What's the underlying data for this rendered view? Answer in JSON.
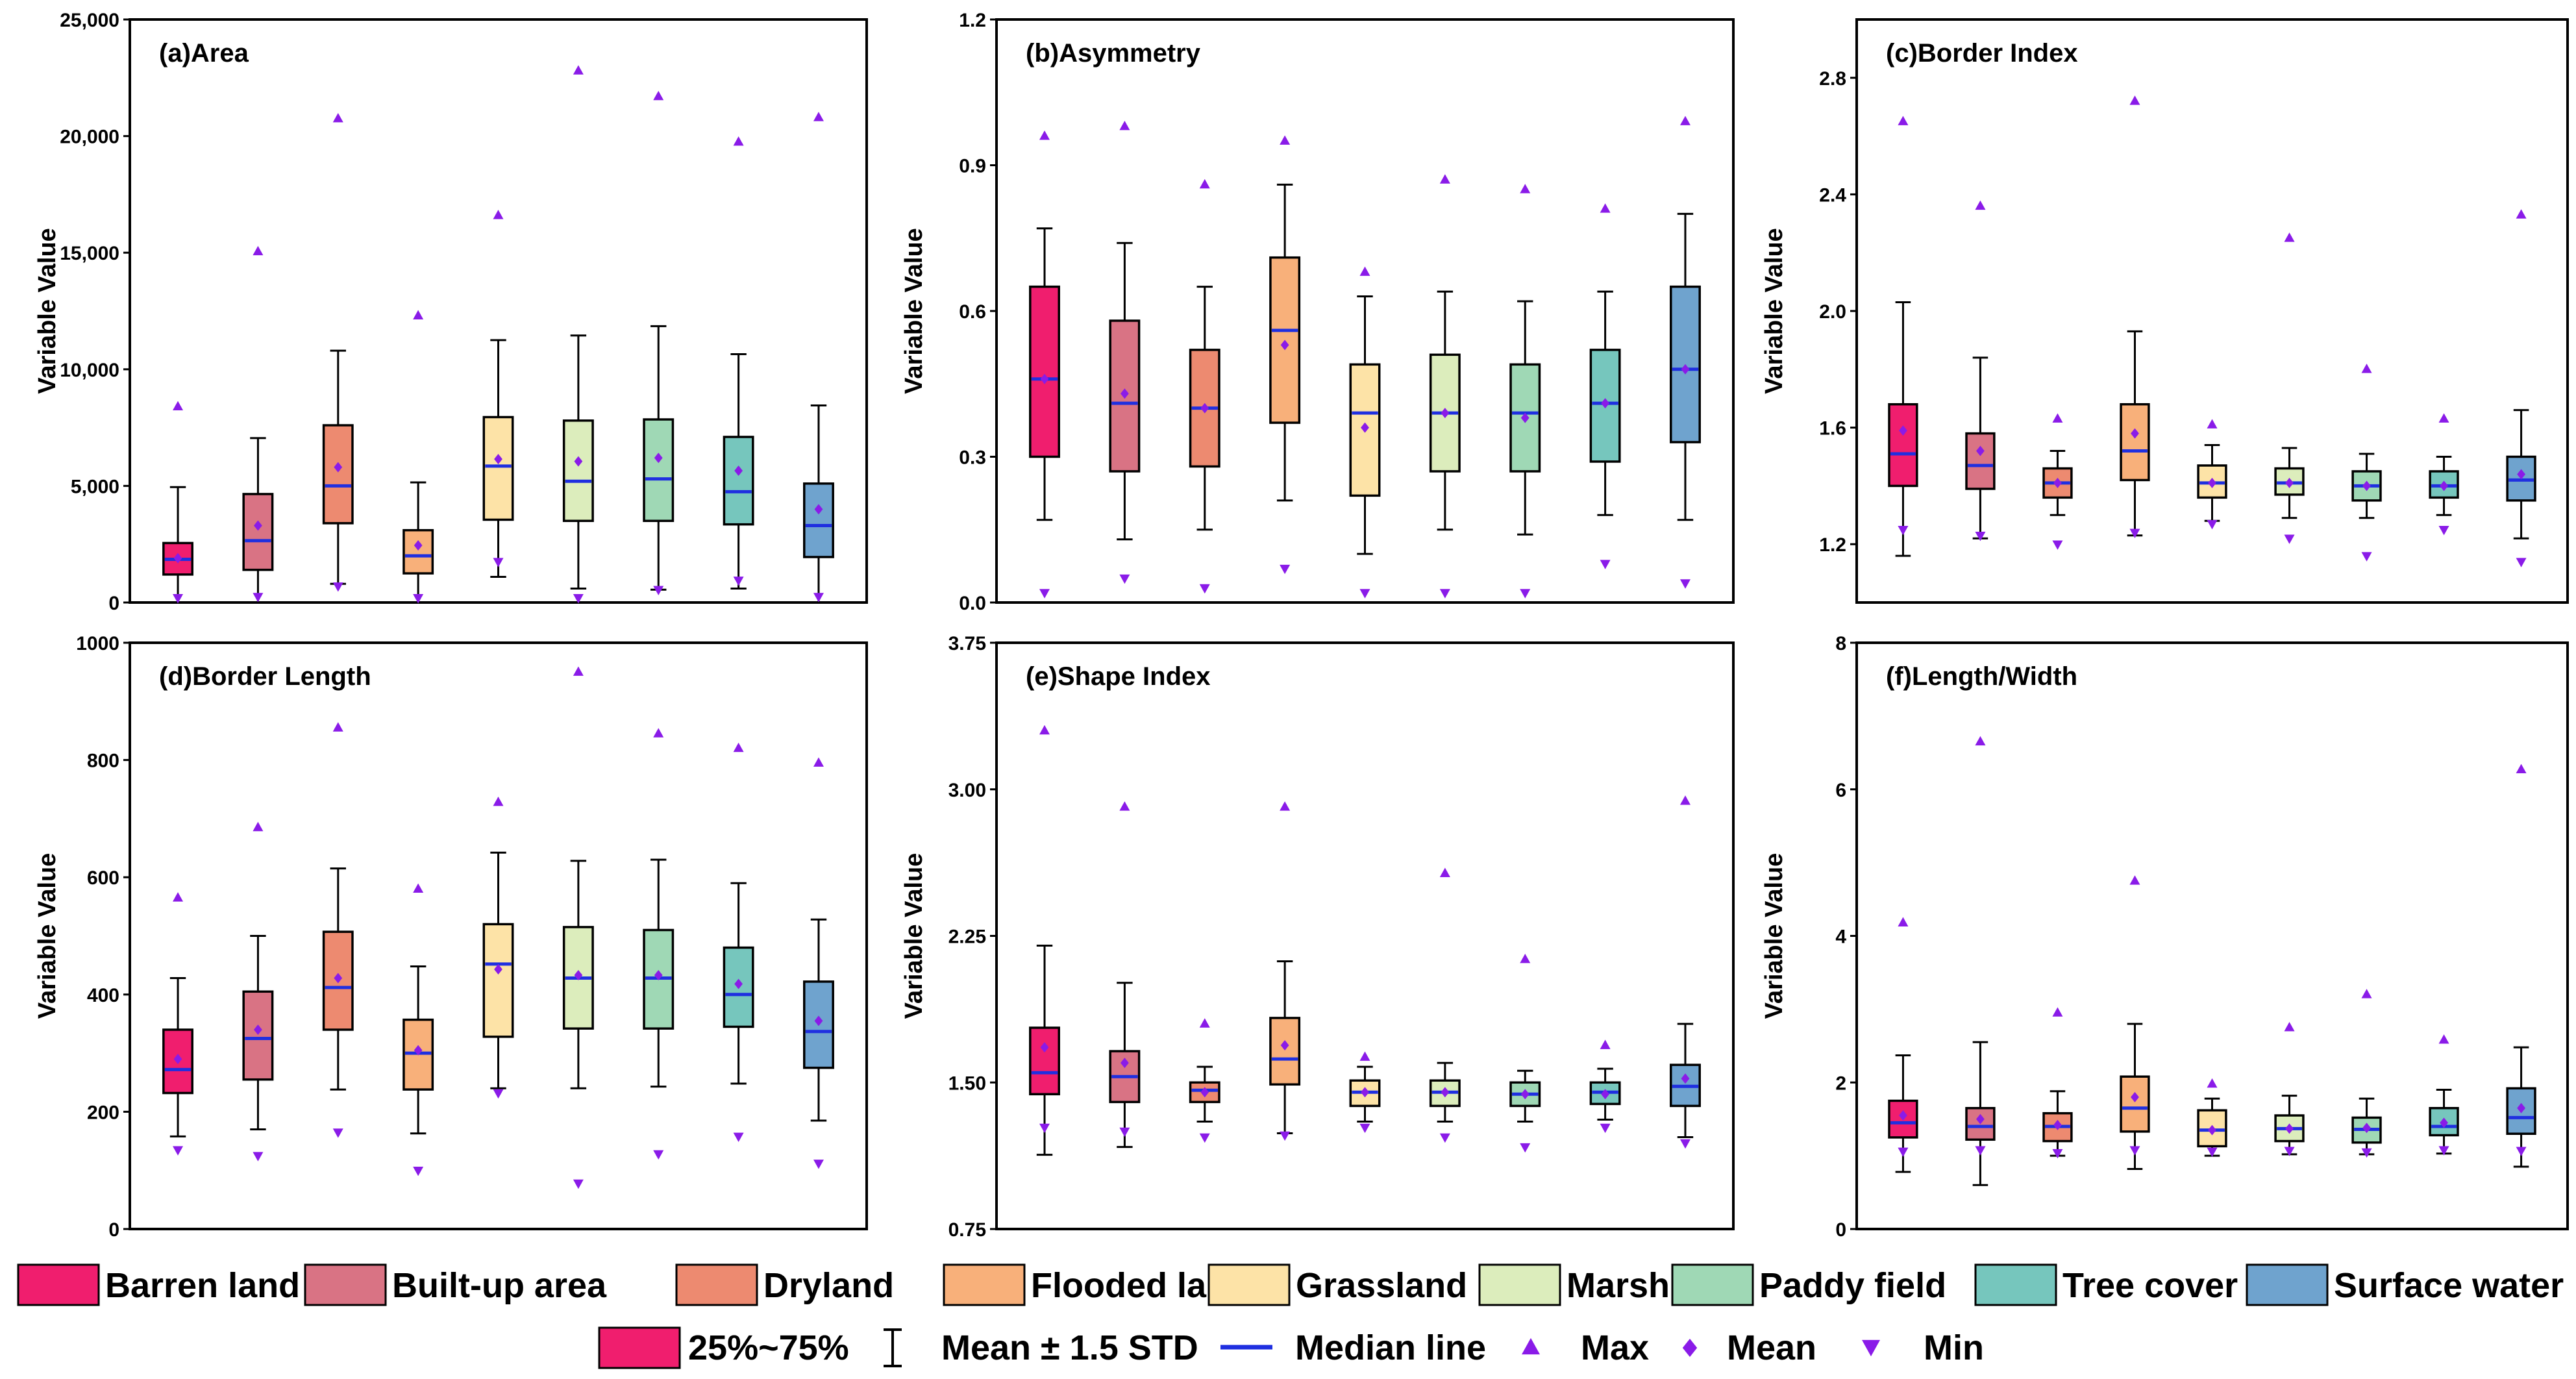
{
  "chart_data": [
    {
      "type": "box",
      "title": "(a)Area",
      "ylabel": "Variable Value",
      "ylim": [
        0,
        25000
      ],
      "yticks": [
        0,
        5000,
        10000,
        15000,
        20000,
        25000
      ],
      "ytick_labels": [
        "0",
        "5,000",
        "10,000",
        "15,000",
        "20,000",
        "25,000"
      ],
      "categories": [
        "Barren land",
        "Built-up area",
        "Dryland",
        "Flooded land",
        "Grassland",
        "Marsh",
        "Paddy field",
        "Tree cover",
        "Surface water"
      ],
      "boxes": [
        {
          "q1": 1200,
          "q3": 2550,
          "median": 1850,
          "mean": 1900,
          "whisker_low": 0,
          "whisker_high": 4950,
          "max": 8400,
          "min": 200
        },
        {
          "q1": 1400,
          "q3": 4650,
          "median": 2650,
          "mean": 3300,
          "whisker_low": 0,
          "whisker_high": 7050,
          "max": 15050,
          "min": 250
        },
        {
          "q1": 3400,
          "q3": 7600,
          "median": 5000,
          "mean": 5800,
          "whisker_low": 800,
          "whisker_high": 10800,
          "max": 20750,
          "min": 700
        },
        {
          "q1": 1250,
          "q3": 3100,
          "median": 2000,
          "mean": 2450,
          "whisker_low": 0,
          "whisker_high": 5150,
          "max": 12300,
          "min": 200
        },
        {
          "q1": 3550,
          "q3": 7950,
          "median": 5850,
          "mean": 6150,
          "whisker_low": 1100,
          "whisker_high": 11250,
          "max": 16600,
          "min": 1750
        },
        {
          "q1": 3500,
          "q3": 7800,
          "median": 5200,
          "mean": 6050,
          "whisker_low": 600,
          "whisker_high": 11450,
          "max": 22800,
          "min": 200
        },
        {
          "q1": 3500,
          "q3": 7850,
          "median": 5300,
          "mean": 6200,
          "whisker_low": 550,
          "whisker_high": 11850,
          "max": 21700,
          "min": 550
        },
        {
          "q1": 3350,
          "q3": 7100,
          "median": 4750,
          "mean": 5650,
          "whisker_low": 600,
          "whisker_high": 10650,
          "max": 19750,
          "min": 950
        },
        {
          "q1": 1950,
          "q3": 5100,
          "median": 3300,
          "mean": 4000,
          "whisker_low": 0,
          "whisker_high": 8450,
          "max": 20800,
          "min": 250
        }
      ]
    },
    {
      "type": "box",
      "title": "(b)Asymmetry",
      "ylabel": "Variable Value",
      "ylim": [
        0,
        1.2
      ],
      "yticks": [
        0,
        0.3,
        0.6,
        0.9,
        1.2
      ],
      "ytick_labels": [
        "0.0",
        "0.3",
        "0.6",
        "0.9",
        "1.2"
      ],
      "categories": [
        "Barren land",
        "Built-up area",
        "Dryland",
        "Flooded land",
        "Grassland",
        "Marsh",
        "Paddy field",
        "Tree cover",
        "Surface water"
      ],
      "boxes": [
        {
          "q1": 0.3,
          "q3": 0.65,
          "median": 0.46,
          "mean": 0.46,
          "whisker_low": 0.17,
          "whisker_high": 0.77,
          "max": 0.96,
          "min": 0.02
        },
        {
          "q1": 0.27,
          "q3": 0.58,
          "median": 0.41,
          "mean": 0.43,
          "whisker_low": 0.13,
          "whisker_high": 0.74,
          "max": 0.98,
          "min": 0.05
        },
        {
          "q1": 0.28,
          "q3": 0.52,
          "median": 0.4,
          "mean": 0.4,
          "whisker_low": 0.15,
          "whisker_high": 0.65,
          "max": 0.86,
          "min": 0.03
        },
        {
          "q1": 0.37,
          "q3": 0.71,
          "median": 0.56,
          "mean": 0.53,
          "whisker_low": 0.21,
          "whisker_high": 0.86,
          "max": 0.95,
          "min": 0.07
        },
        {
          "q1": 0.22,
          "q3": 0.49,
          "median": 0.39,
          "mean": 0.36,
          "whisker_low": 0.1,
          "whisker_high": 0.63,
          "max": 0.68,
          "min": 0.02
        },
        {
          "q1": 0.27,
          "q3": 0.51,
          "median": 0.39,
          "mean": 0.39,
          "whisker_low": 0.15,
          "whisker_high": 0.64,
          "max": 0.87,
          "min": 0.02
        },
        {
          "q1": 0.27,
          "q3": 0.49,
          "median": 0.39,
          "mean": 0.38,
          "whisker_low": 0.14,
          "whisker_high": 0.62,
          "max": 0.85,
          "min": 0.02
        },
        {
          "q1": 0.29,
          "q3": 0.52,
          "median": 0.41,
          "mean": 0.41,
          "whisker_low": 0.18,
          "whisker_high": 0.64,
          "max": 0.81,
          "min": 0.08
        },
        {
          "q1": 0.33,
          "q3": 0.65,
          "median": 0.48,
          "mean": 0.48,
          "whisker_low": 0.17,
          "whisker_high": 0.8,
          "max": 0.99,
          "min": 0.04
        }
      ]
    },
    {
      "type": "box",
      "title": "(c)Border Index",
      "ylabel": "Variable Value",
      "ylim": [
        1.0,
        3.0
      ],
      "yticks": [
        1.2,
        1.6,
        2.0,
        2.4,
        2.8
      ],
      "ytick_labels": [
        "1.2",
        "1.6",
        "2.0",
        "2.4",
        "2.8"
      ],
      "categories": [
        "Barren land",
        "Built-up area",
        "Dryland",
        "Flooded land",
        "Grassland",
        "Marsh",
        "Paddy field",
        "Tree cover",
        "Surface water"
      ],
      "boxes": [
        {
          "q1": 1.4,
          "q3": 1.68,
          "median": 1.51,
          "mean": 1.59,
          "whisker_low": 1.16,
          "whisker_high": 2.03,
          "max": 2.65,
          "min": 1.25
        },
        {
          "q1": 1.39,
          "q3": 1.58,
          "median": 1.47,
          "mean": 1.52,
          "whisker_low": 1.22,
          "whisker_high": 1.84,
          "max": 2.36,
          "min": 1.23
        },
        {
          "q1": 1.36,
          "q3": 1.46,
          "median": 1.41,
          "mean": 1.41,
          "whisker_low": 1.3,
          "whisker_high": 1.52,
          "max": 1.63,
          "min": 1.2
        },
        {
          "q1": 1.42,
          "q3": 1.68,
          "median": 1.52,
          "mean": 1.58,
          "whisker_low": 1.23,
          "whisker_high": 1.93,
          "max": 2.72,
          "min": 1.24
        },
        {
          "q1": 1.36,
          "q3": 1.47,
          "median": 1.41,
          "mean": 1.41,
          "whisker_low": 1.28,
          "whisker_high": 1.54,
          "max": 1.61,
          "min": 1.27
        },
        {
          "q1": 1.37,
          "q3": 1.46,
          "median": 1.41,
          "mean": 1.41,
          "whisker_low": 1.29,
          "whisker_high": 1.53,
          "max": 2.25,
          "min": 1.22
        },
        {
          "q1": 1.35,
          "q3": 1.45,
          "median": 1.4,
          "mean": 1.4,
          "whisker_low": 1.29,
          "whisker_high": 1.51,
          "max": 1.8,
          "min": 1.16
        },
        {
          "q1": 1.36,
          "q3": 1.45,
          "median": 1.4,
          "mean": 1.4,
          "whisker_low": 1.3,
          "whisker_high": 1.5,
          "max": 1.63,
          "min": 1.25
        },
        {
          "q1": 1.35,
          "q3": 1.5,
          "median": 1.42,
          "mean": 1.44,
          "whisker_low": 1.22,
          "whisker_high": 1.66,
          "max": 2.33,
          "min": 1.14
        }
      ]
    },
    {
      "type": "box",
      "title": "(d)Border Length",
      "ylabel": "Variable Value",
      "ylim": [
        0,
        1000
      ],
      "yticks": [
        0,
        200,
        400,
        600,
        800,
        1000
      ],
      "ytick_labels": [
        "0",
        "200",
        "400",
        "600",
        "800",
        "1000"
      ],
      "categories": [
        "Barren land",
        "Built-up area",
        "Dryland",
        "Flooded land",
        "Grassland",
        "Marsh",
        "Paddy field",
        "Tree cover",
        "Surface water"
      ],
      "boxes": [
        {
          "q1": 232,
          "q3": 340,
          "median": 272,
          "mean": 290,
          "whisker_low": 158,
          "whisker_high": 428,
          "max": 565,
          "min": 135
        },
        {
          "q1": 255,
          "q3": 405,
          "median": 325,
          "mean": 340,
          "whisker_low": 170,
          "whisker_high": 500,
          "max": 685,
          "min": 125
        },
        {
          "q1": 340,
          "q3": 507,
          "median": 412,
          "mean": 428,
          "whisker_low": 238,
          "whisker_high": 615,
          "max": 855,
          "min": 165
        },
        {
          "q1": 238,
          "q3": 357,
          "median": 300,
          "mean": 305,
          "whisker_low": 163,
          "whisker_high": 448,
          "max": 580,
          "min": 100
        },
        {
          "q1": 328,
          "q3": 520,
          "median": 452,
          "mean": 443,
          "whisker_low": 240,
          "whisker_high": 642,
          "max": 728,
          "min": 232
        },
        {
          "q1": 342,
          "q3": 515,
          "median": 428,
          "mean": 433,
          "whisker_low": 240,
          "whisker_high": 628,
          "max": 950,
          "min": 78
        },
        {
          "q1": 342,
          "q3": 510,
          "median": 428,
          "mean": 433,
          "whisker_low": 243,
          "whisker_high": 630,
          "max": 845,
          "min": 128
        },
        {
          "q1": 345,
          "q3": 480,
          "median": 400,
          "mean": 418,
          "whisker_low": 248,
          "whisker_high": 590,
          "max": 820,
          "min": 158
        },
        {
          "q1": 275,
          "q3": 422,
          "median": 337,
          "mean": 355,
          "whisker_low": 185,
          "whisker_high": 528,
          "max": 795,
          "min": 112
        }
      ]
    },
    {
      "type": "box",
      "title": "(e)Shape Index",
      "ylabel": "Variable Value",
      "ylim": [
        0.75,
        3.75
      ],
      "yticks": [
        0.75,
        1.5,
        2.25,
        3.0,
        3.75
      ],
      "ytick_labels": [
        "0.75",
        "1.50",
        "2.25",
        "3.00",
        "3.75"
      ],
      "categories": [
        "Barren land",
        "Built-up area",
        "Dryland",
        "Flooded land",
        "Grassland",
        "Marsh",
        "Paddy field",
        "Tree cover",
        "Surface water"
      ],
      "boxes": [
        {
          "q1": 1.44,
          "q3": 1.78,
          "median": 1.55,
          "mean": 1.68,
          "whisker_low": 1.13,
          "whisker_high": 2.2,
          "max": 3.3,
          "min": 1.27
        },
        {
          "q1": 1.4,
          "q3": 1.66,
          "median": 1.53,
          "mean": 1.6,
          "whisker_low": 1.17,
          "whisker_high": 2.01,
          "max": 2.91,
          "min": 1.25
        },
        {
          "q1": 1.4,
          "q3": 1.5,
          "median": 1.46,
          "mean": 1.45,
          "whisker_low": 1.3,
          "whisker_high": 1.58,
          "max": 1.8,
          "min": 1.22
        },
        {
          "q1": 1.49,
          "q3": 1.83,
          "median": 1.62,
          "mean": 1.69,
          "whisker_low": 1.24,
          "whisker_high": 2.12,
          "max": 2.91,
          "min": 1.23
        },
        {
          "q1": 1.38,
          "q3": 1.51,
          "median": 1.45,
          "mean": 1.45,
          "whisker_low": 1.3,
          "whisker_high": 1.58,
          "max": 1.63,
          "min": 1.27
        },
        {
          "q1": 1.38,
          "q3": 1.51,
          "median": 1.45,
          "mean": 1.45,
          "whisker_low": 1.3,
          "whisker_high": 1.6,
          "max": 2.57,
          "min": 1.22
        },
        {
          "q1": 1.38,
          "q3": 1.5,
          "median": 1.44,
          "mean": 1.44,
          "whisker_low": 1.3,
          "whisker_high": 1.56,
          "max": 2.13,
          "min": 1.17
        },
        {
          "q1": 1.39,
          "q3": 1.5,
          "median": 1.45,
          "mean": 1.44,
          "whisker_low": 1.31,
          "whisker_high": 1.57,
          "max": 1.69,
          "min": 1.27
        },
        {
          "q1": 1.38,
          "q3": 1.59,
          "median": 1.48,
          "mean": 1.52,
          "whisker_low": 1.22,
          "whisker_high": 1.8,
          "max": 2.94,
          "min": 1.19
        }
      ]
    },
    {
      "type": "box",
      "title": "(f)Length/Width",
      "ylabel": "Variable Value",
      "ylim": [
        0,
        8
      ],
      "yticks": [
        0,
        2,
        4,
        6,
        8
      ],
      "ytick_labels": [
        "0",
        "2",
        "4",
        "6",
        "8"
      ],
      "categories": [
        "Barren land",
        "Built-up area",
        "Dryland",
        "Flooded land",
        "Grassland",
        "Marsh",
        "Paddy field",
        "Tree cover",
        "Surface water"
      ],
      "boxes": [
        {
          "q1": 1.25,
          "q3": 1.75,
          "median": 1.45,
          "mean": 1.55,
          "whisker_low": 0.78,
          "whisker_high": 2.37,
          "max": 4.18,
          "min": 1.06
        },
        {
          "q1": 1.22,
          "q3": 1.65,
          "median": 1.4,
          "mean": 1.5,
          "whisker_low": 0.6,
          "whisker_high": 2.55,
          "max": 6.65,
          "min": 1.08
        },
        {
          "q1": 1.2,
          "q3": 1.58,
          "median": 1.4,
          "mean": 1.42,
          "whisker_low": 1.0,
          "whisker_high": 1.88,
          "max": 2.95,
          "min": 1.04
        },
        {
          "q1": 1.33,
          "q3": 2.08,
          "median": 1.65,
          "mean": 1.8,
          "whisker_low": 0.82,
          "whisker_high": 2.8,
          "max": 4.75,
          "min": 1.08
        },
        {
          "q1": 1.13,
          "q3": 1.62,
          "median": 1.35,
          "mean": 1.35,
          "whisker_low": 1.0,
          "whisker_high": 1.78,
          "max": 1.98,
          "min": 1.06
        },
        {
          "q1": 1.2,
          "q3": 1.55,
          "median": 1.37,
          "mean": 1.37,
          "whisker_low": 1.02,
          "whisker_high": 1.82,
          "max": 2.75,
          "min": 1.07
        },
        {
          "q1": 1.18,
          "q3": 1.52,
          "median": 1.36,
          "mean": 1.38,
          "whisker_low": 1.02,
          "whisker_high": 1.78,
          "max": 3.2,
          "min": 1.05
        },
        {
          "q1": 1.28,
          "q3": 1.65,
          "median": 1.4,
          "mean": 1.45,
          "whisker_low": 1.03,
          "whisker_high": 1.9,
          "max": 2.58,
          "min": 1.08
        },
        {
          "q1": 1.3,
          "q3": 1.92,
          "median": 1.52,
          "mean": 1.65,
          "whisker_low": 0.85,
          "whisker_high": 2.48,
          "max": 6.27,
          "min": 1.07
        }
      ]
    }
  ],
  "series_colors": {
    "Barren land": "#f01e6e",
    "Built-up area": "#d97384",
    "Dryland": "#ed8a70",
    "Flooded land": "#f8b07a",
    "Grassland": "#fde3a7",
    "Marsh": "#dcedbc",
    "Paddy field": "#9fd8b5",
    "Tree cover": "#76c6bd",
    "Surface water": "#6fa3ce"
  },
  "legend": {
    "categories": [
      "Barren land",
      "Built-up area",
      "Dryland",
      "Flooded land",
      "Grassland",
      "Marsh",
      "Paddy field",
      "Tree cover",
      "Surface water"
    ],
    "box_label": "25%~75%",
    "whisker_label": "Mean ± 1.5 STD",
    "median_label": "Median line",
    "max_label": "Max",
    "mean_label": "Mean",
    "min_label": "Min"
  },
  "styles": {
    "median_color": "#1f2fe0",
    "marker_color": "#8a1be8",
    "axis_color": "#000000"
  }
}
